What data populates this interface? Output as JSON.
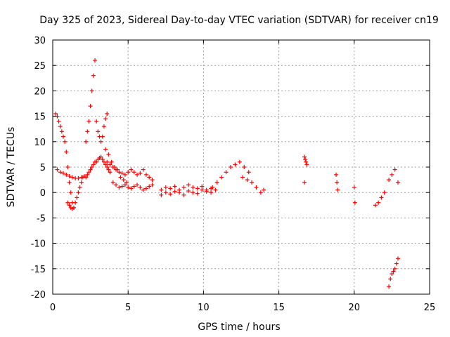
{
  "chart_data": {
    "type": "scatter",
    "title": "Day 325 of 2023, Sidereal Day-to-day VTEC variation (SDTVAR) for receiver cn19",
    "xlabel": "GPS time / hours",
    "ylabel": "SDTVAR / TECUs",
    "xlim": [
      0,
      25
    ],
    "ylim": [
      -20,
      30
    ],
    "xticks": [
      "0",
      "5",
      "10",
      "15",
      "20",
      "25"
    ],
    "yticks": [
      "-20",
      "-15",
      "-10",
      "-5",
      "0",
      "5",
      "10",
      "15",
      "20",
      "25",
      "30"
    ],
    "grid": true,
    "marker": "+",
    "color": "#ff0000",
    "series": [
      {
        "name": "cn19",
        "x": [
          0.2,
          0.3,
          0.4,
          0.5,
          0.6,
          0.7,
          0.8,
          0.9,
          1.0,
          1.1,
          1.2,
          1.3,
          1.4,
          0.3,
          0.5,
          0.7,
          0.9,
          1.1,
          1.3,
          1.5,
          1.7,
          1.9,
          2.1,
          1.0,
          1.1,
          1.2,
          1.3,
          1.4,
          1.5,
          1.6,
          1.7,
          1.8,
          1.9,
          2.0,
          2.2,
          2.3,
          2.4,
          2.5,
          2.6,
          2.7,
          2.8,
          2.9,
          3.0,
          3.1,
          3.2,
          3.3,
          3.4,
          3.5,
          3.6,
          2.2,
          2.3,
          2.4,
          2.5,
          2.6,
          2.7,
          2.8,
          2.9,
          3.0,
          3.1,
          3.2,
          3.3,
          3.4,
          3.5,
          3.6,
          3.7,
          3.8,
          3.6,
          3.8,
          4.0,
          4.2,
          4.4,
          4.6,
          4.8,
          5.0,
          5.2,
          5.4,
          5.6,
          5.8,
          6.0,
          6.2,
          6.4,
          6.6,
          4.0,
          4.2,
          4.4,
          4.6,
          4.8,
          5.0,
          5.2,
          5.4,
          5.6,
          5.8,
          6.0,
          6.2,
          6.4,
          6.6,
          3.5,
          3.7,
          3.9,
          4.1,
          4.3,
          4.5,
          4.7,
          4.9,
          7.2,
          7.5,
          7.8,
          8.1,
          8.4,
          8.7,
          9.0,
          9.3,
          9.6,
          9.9,
          10.2,
          10.5,
          7.2,
          7.5,
          7.8,
          8.1,
          8.4,
          8.7,
          9.0,
          9.3,
          9.6,
          9.9,
          10.2,
          10.5,
          10.8,
          10.6,
          10.9,
          11.2,
          11.5,
          11.8,
          12.1,
          12.4,
          12.7,
          13.0,
          12.6,
          12.9,
          13.2,
          13.5,
          13.8,
          14.0,
          16.7,
          16.75,
          16.8,
          16.85,
          16.7,
          18.8,
          18.85,
          18.9,
          20.0,
          20.05,
          21.4,
          21.6,
          21.8,
          22.0,
          22.3,
          22.5,
          22.7,
          22.9,
          22.3,
          22.4,
          22.5,
          22.6,
          22.7,
          22.8,
          22.9
        ],
        "y": [
          15.5,
          15.0,
          14.0,
          13.0,
          12.0,
          11.0,
          10.0,
          8.0,
          5.0,
          2.0,
          0.0,
          -2.0,
          -3.0,
          4.5,
          4.0,
          3.8,
          3.5,
          3.2,
          3.0,
          2.8,
          2.8,
          3.0,
          3.2,
          -2.0,
          -2.5,
          -3.0,
          -3.2,
          -3.0,
          -2.0,
          -1.0,
          0.0,
          1.0,
          2.0,
          3.0,
          10.0,
          12.0,
          14.0,
          17.0,
          20.0,
          23.0,
          26.0,
          14.0,
          12.0,
          11.0,
          10.0,
          11.0,
          13.0,
          14.5,
          15.5,
          3.0,
          3.5,
          4.0,
          4.5,
          5.0,
          5.5,
          6.0,
          6.0,
          6.5,
          6.8,
          7.0,
          6.5,
          6.0,
          5.5,
          5.0,
          4.5,
          4.0,
          6.0,
          5.5,
          5.0,
          4.5,
          4.0,
          3.8,
          3.5,
          4.0,
          4.5,
          4.0,
          3.5,
          3.8,
          4.5,
          3.5,
          3.0,
          2.5,
          2.0,
          1.5,
          1.0,
          1.2,
          1.5,
          1.0,
          0.8,
          1.2,
          1.5,
          1.0,
          0.5,
          0.8,
          1.2,
          1.5,
          8.5,
          7.5,
          6.0,
          5.0,
          4.5,
          3.0,
          2.5,
          2.0,
          0.5,
          1.0,
          0.8,
          1.2,
          0.5,
          1.0,
          1.5,
          1.0,
          0.8,
          1.2,
          0.5,
          0.8,
          -0.5,
          0.0,
          -0.3,
          0.2,
          0.0,
          -0.5,
          0.3,
          0.0,
          -0.2,
          0.5,
          0.2,
          0.0,
          0.5,
          1.0,
          2.0,
          3.0,
          4.0,
          5.0,
          5.5,
          6.0,
          5.0,
          4.0,
          3.0,
          2.5,
          2.0,
          1.0,
          0.0,
          0.5,
          7.0,
          6.5,
          6.0,
          5.5,
          2.0,
          3.5,
          2.0,
          0.5,
          1.0,
          -2.0,
          -2.5,
          -2.0,
          -1.0,
          0.0,
          2.5,
          3.5,
          4.5,
          2.0,
          -18.5,
          -17.0,
          -16.0,
          -15.5,
          -15.0,
          -14.0,
          -13.0
        ]
      }
    ]
  }
}
